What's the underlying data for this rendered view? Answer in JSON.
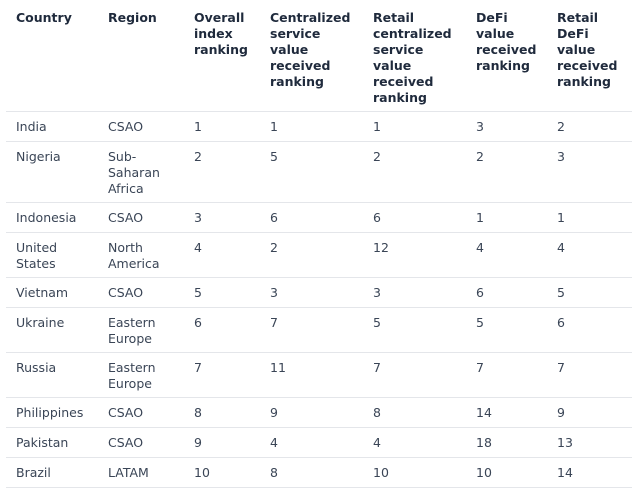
{
  "table": {
    "headers": [
      "Country",
      "Region",
      "Overall index ranking",
      "Centralized service value received ranking",
      "Retail centralized service value received ranking",
      "DeFi value received ranking",
      "Retail DeFi value received ranking"
    ],
    "rows": [
      [
        "India",
        "CSAO",
        "1",
        "1",
        "1",
        "3",
        "2"
      ],
      [
        "Nigeria",
        "Sub-Saharan Africa",
        "2",
        "5",
        "2",
        "2",
        "3"
      ],
      [
        "Indonesia",
        "CSAO",
        "3",
        "6",
        "6",
        "1",
        "1"
      ],
      [
        "United States",
        "North America",
        "4",
        "2",
        "12",
        "4",
        "4"
      ],
      [
        "Vietnam",
        "CSAO",
        "5",
        "3",
        "3",
        "6",
        "5"
      ],
      [
        "Ukraine",
        "Eastern Europe",
        "6",
        "7",
        "5",
        "5",
        "6"
      ],
      [
        "Russia",
        "Eastern Europe",
        "7",
        "11",
        "7",
        "7",
        "7"
      ],
      [
        "Philippines",
        "CSAO",
        "8",
        "9",
        "8",
        "14",
        "9"
      ],
      [
        "Pakistan",
        "CSAO",
        "9",
        "4",
        "4",
        "18",
        "13"
      ],
      [
        "Brazil",
        "LATAM",
        "10",
        "8",
        "10",
        "10",
        "14"
      ]
    ]
  }
}
